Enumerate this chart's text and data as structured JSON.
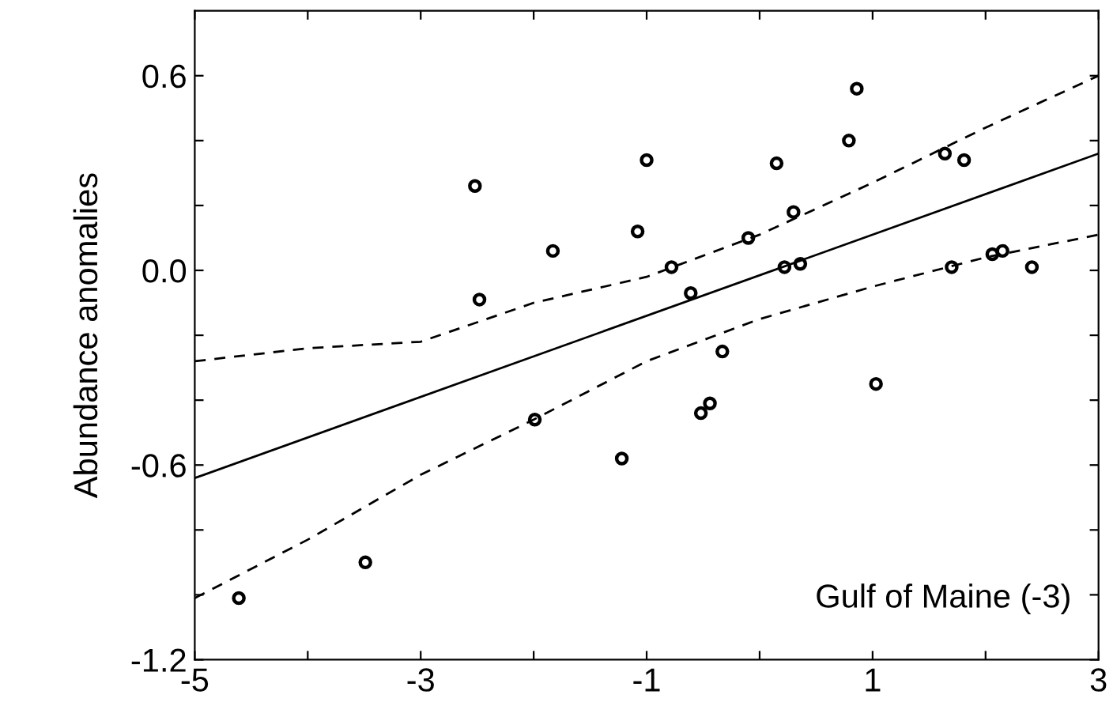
{
  "chart_data": {
    "type": "scatter",
    "ylabel": "Abundance anomalies",
    "annotations": [
      "Gulf of Maine (-3)"
    ],
    "xlim": [
      -5,
      3
    ],
    "ylim": [
      -1.2,
      0.8
    ],
    "xticks": [
      -5,
      {
        "value": -4,
        "label": null
      },
      -3,
      {
        "value": -2,
        "label": null
      },
      -1,
      {
        "value": 0,
        "label": null
      },
      1,
      {
        "value": 2,
        "label": null
      },
      3
    ],
    "yticks": [
      -1.2,
      {
        "value": -1.0,
        "label": null
      },
      {
        "value": -0.8,
        "label": null
      },
      -0.6,
      {
        "value": -0.4,
        "label": null
      },
      {
        "value": -0.2,
        "label": null
      },
      {
        "value": 0.0,
        "label": "0.0"
      },
      {
        "value": 0.2,
        "label": null
      },
      {
        "value": 0.4,
        "label": null
      },
      0.6
    ],
    "grid": false,
    "legend": false,
    "series": [
      {
        "color": "#000000",
        "marker": "circle",
        "x": [
          -2.52,
          -2.48,
          -4.61,
          -3.49,
          -1.99,
          -1.0,
          0.15,
          -1.08,
          -1.83,
          0.3,
          -0.1,
          -0.78,
          -0.61,
          0.22,
          0.36,
          -0.33,
          -0.52,
          -0.44,
          -1.22,
          0.86,
          0.79,
          1.64,
          1.81,
          1.03,
          1.7,
          2.06,
          2.15,
          2.41
        ],
        "values": [
          0.26,
          -0.09,
          -1.01,
          -0.9,
          -0.46,
          0.34,
          0.33,
          0.12,
          0.06,
          0.18,
          0.1,
          0.01,
          -0.07,
          0.01,
          0.02,
          -0.25,
          -0.44,
          -0.41,
          -0.58,
          0.56,
          0.4,
          0.36,
          0.34,
          -0.35,
          0.01,
          0.05,
          0.06,
          0.01
        ]
      },
      {
        "type": "line",
        "color": "#000000",
        "marker": "none",
        "line_style": "solid",
        "x": [
          -5,
          3
        ],
        "values": [
          -0.64,
          0.36
        ]
      },
      {
        "type": "line",
        "color": "#000000",
        "marker": "none",
        "line_style": "dashed",
        "x": [
          -5,
          -4,
          -3,
          -2,
          -1,
          0,
          1,
          2,
          3
        ],
        "values": [
          -0.28,
          -0.24,
          -0.22,
          -0.1,
          -0.02,
          0.11,
          0.27,
          0.44,
          0.6
        ]
      },
      {
        "type": "line",
        "color": "#000000",
        "marker": "none",
        "line_style": "dashed",
        "x": [
          -5,
          -4,
          -3,
          -2,
          -1,
          0,
          1,
          2,
          3
        ],
        "values": [
          -1.01,
          -0.83,
          -0.63,
          -0.46,
          -0.28,
          -0.15,
          -0.05,
          0.04,
          0.11
        ]
      }
    ]
  }
}
